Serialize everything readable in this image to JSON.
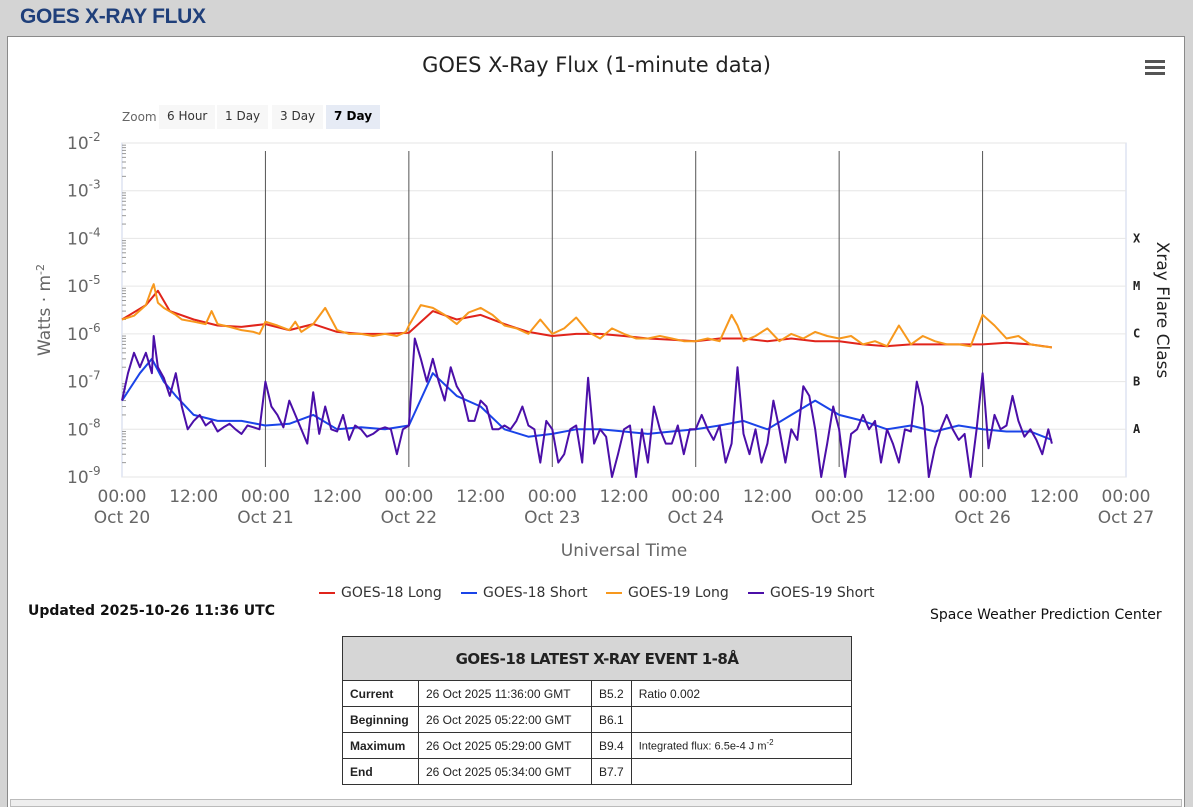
{
  "page": {
    "title": "GOES X-RAY FLUX"
  },
  "zoom": {
    "label": "Zoom",
    "buttons": [
      "6 Hour",
      "1 Day",
      "3 Day",
      "7 Day"
    ],
    "active": "7 Day"
  },
  "legend": [
    {
      "name": "GOES-18 Long",
      "color": "#e0241b"
    },
    {
      "name": "GOES-18 Short",
      "color": "#1a44e8"
    },
    {
      "name": "GOES-19 Long",
      "color": "#f7981d"
    },
    {
      "name": "GOES-19 Short",
      "color": "#4b0fa8"
    }
  ],
  "updated": "Updated 2025-10-26 11:36 UTC",
  "credit": "Space Weather Prediction Center",
  "event_table": {
    "title": "GOES-18 LATEST X-RAY EVENT 1-8Å",
    "rows": [
      {
        "label": "Current",
        "time": "26 Oct 2025 11:36:00 GMT",
        "class": "B5.2",
        "extra": "Ratio 0.002"
      },
      {
        "label": "Beginning",
        "time": "26 Oct 2025 05:22:00 GMT",
        "class": "B6.1",
        "extra": ""
      },
      {
        "label": "Maximum",
        "time": "26 Oct 2025 05:29:00 GMT",
        "class": "B9.4",
        "extra": "Integrated flux: 6.5e-4 J m",
        "extra_sup": "-2"
      },
      {
        "label": "End",
        "time": "26 Oct 2025 05:34:00 GMT",
        "class": "B7.7",
        "extra": ""
      }
    ]
  },
  "chart_data": {
    "type": "line",
    "title": "GOES X-Ray Flux (1-minute data)",
    "xlabel": "Universal Time",
    "ylabel": "Watts · m",
    "ylabel_sup": "-2",
    "y2label": "Xray Flare Class",
    "yscale": "log",
    "ylim": [
      1e-09,
      0.01
    ],
    "y_ticks": [
      {
        "base": "10",
        "exp": "-2"
      },
      {
        "base": "10",
        "exp": "-3"
      },
      {
        "base": "10",
        "exp": "-4"
      },
      {
        "base": "10",
        "exp": "-5"
      },
      {
        "base": "10",
        "exp": "-6"
      },
      {
        "base": "10",
        "exp": "-7"
      },
      {
        "base": "10",
        "exp": "-8"
      },
      {
        "base": "10",
        "exp": "-9"
      }
    ],
    "xlim_hours": [
      0,
      168
    ],
    "x_ticks": [
      {
        "time": "00:00",
        "date": "Oct 20"
      },
      {
        "time": "12:00",
        "date": ""
      },
      {
        "time": "00:00",
        "date": "Oct 21"
      },
      {
        "time": "12:00",
        "date": ""
      },
      {
        "time": "00:00",
        "date": "Oct 22"
      },
      {
        "time": "12:00",
        "date": ""
      },
      {
        "time": "00:00",
        "date": "Oct 23"
      },
      {
        "time": "12:00",
        "date": ""
      },
      {
        "time": "00:00",
        "date": "Oct 24"
      },
      {
        "time": "12:00",
        "date": ""
      },
      {
        "time": "00:00",
        "date": "Oct 25"
      },
      {
        "time": "12:00",
        "date": ""
      },
      {
        "time": "00:00",
        "date": "Oct 26"
      },
      {
        "time": "12:00",
        "date": ""
      },
      {
        "time": "00:00",
        "date": "Oct 27"
      }
    ],
    "flare_classes": [
      "X",
      "M",
      "C",
      "B",
      "A"
    ],
    "series": [
      {
        "name": "GOES-18 Long",
        "color": "#e0241b",
        "x": [
          0,
          4,
          6,
          8,
          12,
          16,
          20,
          24,
          28,
          32,
          36,
          40,
          44,
          48,
          52,
          56,
          60,
          64,
          68,
          72,
          76,
          80,
          84,
          88,
          92,
          96,
          100,
          104,
          108,
          112,
          116,
          120,
          124,
          128,
          132,
          136,
          140,
          144,
          148,
          152,
          155.6
        ],
        "y": [
          2e-06,
          4e-06,
          8e-06,
          3e-06,
          2e-06,
          1.5e-06,
          1.4e-06,
          1.6e-06,
          1.2e-06,
          1.6e-06,
          1.1e-06,
          1e-06,
          1e-06,
          1.05e-06,
          3e-06,
          2e-06,
          2.5e-06,
          1.6e-06,
          1.1e-06,
          9e-07,
          1e-06,
          1e-06,
          9e-07,
          8e-07,
          7.5e-07,
          7e-07,
          8e-07,
          8e-07,
          7e-07,
          8e-07,
          7e-07,
          7e-07,
          6e-07,
          5.5e-07,
          6e-07,
          6e-07,
          6e-07,
          6e-07,
          6.5e-07,
          6e-07,
          5.2e-07
        ]
      },
      {
        "name": "GOES-18 Short",
        "color": "#1a44e8",
        "x": [
          0,
          3,
          5,
          7,
          9,
          12,
          16,
          20,
          24,
          28,
          32,
          36,
          40,
          44,
          48,
          52,
          56,
          60,
          64,
          68,
          72,
          76,
          80,
          84,
          88,
          92,
          96,
          100,
          104,
          108,
          112,
          116,
          120,
          124,
          128,
          132,
          136,
          140,
          144,
          148,
          152,
          155.6
        ],
        "y": [
          4e-08,
          1.5e-07,
          3e-07,
          1e-07,
          5e-08,
          2e-08,
          1.5e-08,
          1.5e-08,
          1.2e-08,
          1.3e-08,
          2e-08,
          1e-08,
          1.1e-08,
          1e-08,
          1.2e-08,
          1.5e-07,
          5e-08,
          3e-08,
          1e-08,
          7e-09,
          8e-09,
          1e-08,
          1e-08,
          9e-09,
          8e-09,
          9e-09,
          1e-08,
          1.2e-08,
          1.5e-08,
          1e-08,
          2e-08,
          4e-08,
          2e-08,
          1.5e-08,
          1e-08,
          1.2e-08,
          9e-09,
          1.2e-08,
          1e-08,
          9e-09,
          9e-09,
          6e-09
        ]
      },
      {
        "name": "GOES-19 Long",
        "color": "#f7981d",
        "x": [
          0,
          2,
          4,
          5,
          5.3,
          6,
          7,
          9,
          10,
          12,
          14,
          15,
          16,
          18,
          20,
          22,
          23,
          24,
          26,
          28,
          29,
          30,
          32,
          34,
          36,
          38,
          40,
          42,
          44,
          46,
          47.5,
          48,
          50,
          52,
          54,
          55,
          56,
          58,
          60,
          62,
          64,
          66,
          68,
          70,
          72,
          74,
          76,
          78,
          80,
          82,
          84,
          86,
          88,
          90,
          92,
          94,
          96,
          98,
          100,
          102,
          103,
          104,
          106,
          108,
          110,
          112,
          114,
          116,
          118,
          120,
          122,
          124,
          126,
          128,
          130,
          132,
          134,
          136,
          138,
          140,
          142,
          144,
          146,
          148,
          150,
          152,
          154,
          155.6
        ],
        "y": [
          2e-06,
          2.4e-06,
          4e-06,
          9e-06,
          1.1e-05,
          4.5e-06,
          3.5e-06,
          2.5e-06,
          2e-06,
          1.8e-06,
          1.6e-06,
          3e-06,
          1.6e-06,
          1.4e-06,
          1.2e-06,
          1.1e-06,
          1e-06,
          1.8e-06,
          1.5e-06,
          1.2e-06,
          1.8e-06,
          1.1e-06,
          1.6e-06,
          3.5e-06,
          1.2e-06,
          1e-06,
          1e-06,
          9e-07,
          1e-06,
          9e-07,
          1.1e-06,
          1.5e-06,
          4e-06,
          3.5e-06,
          2.5e-06,
          2e-06,
          1.6e-06,
          2.8e-06,
          3.5e-06,
          2.5e-06,
          1.5e-06,
          1.3e-06,
          1e-06,
          2e-06,
          1e-06,
          1.3e-06,
          2.2e-06,
          1.1e-06,
          8e-07,
          1.3e-06,
          1e-06,
          8e-07,
          8e-07,
          9e-07,
          8e-07,
          7e-07,
          7e-07,
          8e-07,
          7e-07,
          2.5e-06,
          1.5e-06,
          7e-07,
          9e-07,
          1.3e-06,
          7e-07,
          1e-06,
          8e-07,
          1.1e-06,
          9e-07,
          8e-07,
          9e-07,
          6e-07,
          7e-07,
          5.5e-07,
          1.5e-06,
          6e-07,
          9e-07,
          7e-07,
          6e-07,
          6e-07,
          5.5e-07,
          2.5e-06,
          1.5e-06,
          8e-07,
          9e-07,
          6e-07,
          5.5e-07,
          5.2e-07
        ]
      },
      {
        "name": "GOES-19 Short",
        "color": "#4b0fa8",
        "x": [
          0,
          1,
          2,
          3,
          4,
          5,
          5.3,
          6,
          7,
          8,
          9,
          10,
          11,
          12,
          13,
          14,
          15,
          16,
          17,
          18,
          19,
          20,
          21,
          22,
          23,
          24,
          25,
          26,
          27,
          28,
          29,
          30,
          31,
          32,
          33,
          34,
          35,
          36,
          37,
          38,
          39,
          40,
          41,
          42,
          43,
          44,
          45,
          46,
          47,
          48,
          49,
          50,
          51,
          52,
          53,
          54,
          55,
          56,
          57,
          58,
          59,
          60,
          61,
          62,
          63,
          64,
          65,
          66,
          67,
          68,
          69,
          70,
          71,
          72,
          73,
          74,
          75,
          76,
          77,
          78,
          79,
          80,
          81,
          82,
          83,
          84,
          85,
          86,
          87,
          88,
          89,
          90,
          91,
          92,
          93,
          94,
          95,
          96,
          97,
          98,
          99,
          100,
          101,
          102,
          103,
          104,
          105,
          106,
          107,
          108,
          109,
          110,
          111,
          112,
          113,
          114,
          115,
          116,
          117,
          118,
          119,
          120,
          121,
          122,
          123,
          124,
          125,
          126,
          127,
          128,
          129,
          130,
          131,
          132,
          133,
          134,
          135,
          136,
          137,
          138,
          139,
          140,
          141,
          142,
          143,
          144,
          145,
          146,
          147,
          148,
          149,
          150,
          151,
          152,
          153,
          154,
          155,
          155.6
        ],
        "y": [
          4e-08,
          1.5e-07,
          4e-07,
          2e-07,
          4e-07,
          1.5e-07,
          9e-07,
          2e-07,
          1.2e-07,
          5e-08,
          1.5e-07,
          3e-08,
          1e-08,
          1.5e-08,
          2e-08,
          1.2e-08,
          1.5e-08,
          9e-09,
          1.1e-08,
          1.3e-08,
          1e-08,
          8e-09,
          1.2e-08,
          1.1e-08,
          1e-08,
          1e-07,
          3e-08,
          2e-08,
          1.1e-08,
          4e-08,
          2e-08,
          1e-08,
          5e-09,
          6e-08,
          8e-09,
          3e-08,
          1e-08,
          9e-09,
          2e-08,
          6e-09,
          1.2e-08,
          1e-08,
          7e-09,
          8e-09,
          1e-08,
          1.1e-08,
          1e-08,
          3e-09,
          1e-08,
          1.2e-08,
          8e-07,
          3e-07,
          1e-07,
          3e-07,
          1e-07,
          4e-08,
          2e-07,
          8e-08,
          5e-08,
          1.5e-08,
          1.5e-08,
          4e-08,
          3e-08,
          1e-08,
          1e-08,
          1.2e-08,
          1e-08,
          1.5e-08,
          3e-08,
          1.2e-08,
          1e-08,
          2e-09,
          1.5e-08,
          1e-08,
          2e-09,
          3e-09,
          1e-08,
          1.2e-08,
          2e-09,
          1.2e-07,
          5e-09,
          1e-08,
          7e-09,
          1e-09,
          3e-09,
          1e-08,
          1.2e-08,
          1e-09,
          1e-08,
          2e-09,
          3e-08,
          1e-08,
          5e-09,
          5e-09,
          1.2e-08,
          3e-09,
          1e-08,
          1e-08,
          2e-08,
          1e-08,
          6e-09,
          1.2e-08,
          2e-09,
          5e-09,
          2e-07,
          8e-09,
          3e-09,
          1e-08,
          2e-09,
          5e-09,
          4e-08,
          1e-08,
          2e-09,
          1e-08,
          6e-09,
          8e-08,
          5e-08,
          1e-08,
          1e-09,
          5e-09,
          3e-08,
          1e-08,
          1e-09,
          8e-09,
          1e-08,
          2e-08,
          1e-08,
          1.5e-08,
          2e-09,
          1e-08,
          5e-09,
          2e-09,
          1e-08,
          9e-09,
          1e-07,
          3e-08,
          1e-09,
          4e-09,
          1e-08,
          2e-08,
          1e-08,
          6e-09,
          8e-09,
          1e-09,
          1e-08,
          1.5e-07,
          4e-09,
          2e-08,
          1e-08,
          1.2e-08,
          5e-08,
          1.5e-08,
          7e-09,
          1e-08,
          6e-09,
          3e-09,
          1e-08,
          5e-09
        ]
      }
    ]
  }
}
